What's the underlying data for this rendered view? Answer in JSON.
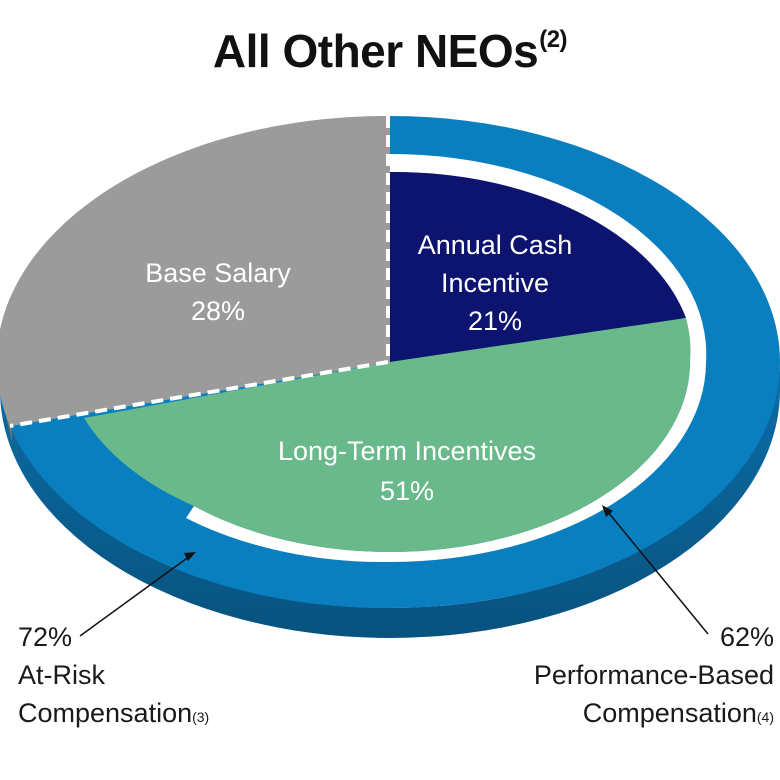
{
  "chart_data": {
    "type": "pie",
    "title": "All Other NEOs",
    "title_note": "(2)",
    "slices": [
      {
        "label": "Base Salary",
        "value": 28,
        "value_label": "28%",
        "color": "#9b9b9b"
      },
      {
        "label": "Annual Cash Incentive",
        "label_lines": [
          "Annual Cash",
          "Incentive"
        ],
        "value": 21,
        "value_label": "21%",
        "color": "#0c1470"
      },
      {
        "label": "Long-Term Incentives",
        "value": 51,
        "value_label": "51%",
        "color": "#69b98b"
      }
    ],
    "rings": [
      {
        "name": "At-Risk Compensation",
        "value_label": "72%",
        "note": "(3)",
        "color": "#0a7fc0",
        "lines": [
          "72%",
          "At-Risk",
          "Compensation"
        ]
      },
      {
        "name": "Performance-Based Compensation",
        "value_label": "62%",
        "note": "(4)",
        "color": "#0a7fc0",
        "lines": [
          "62%",
          "Performance-Based",
          "Compensation"
        ]
      }
    ]
  }
}
